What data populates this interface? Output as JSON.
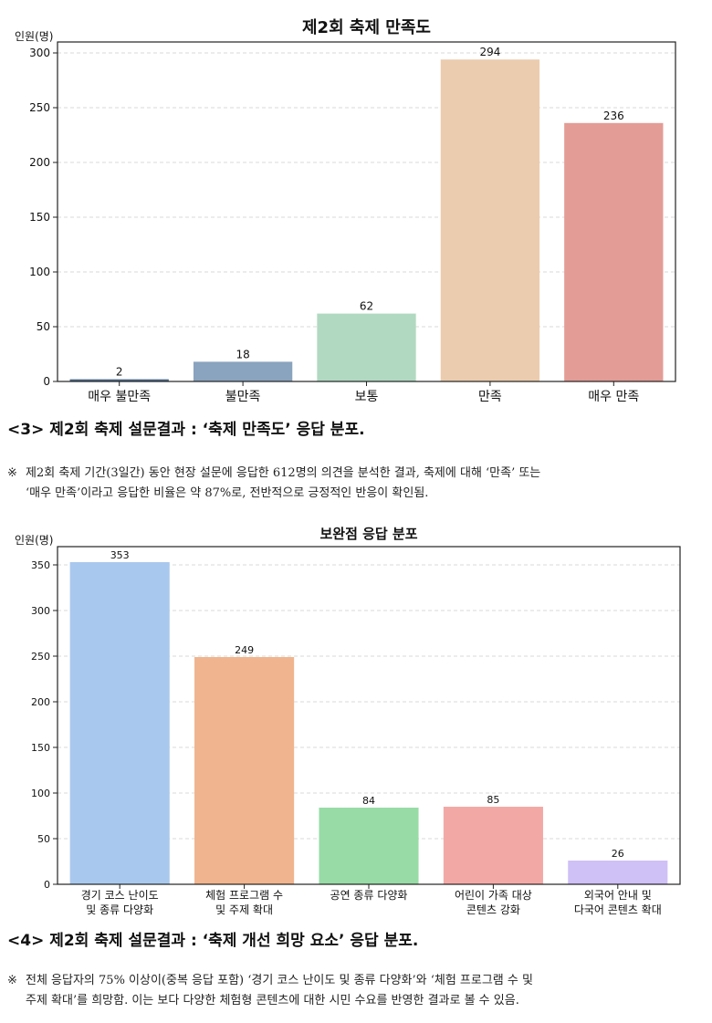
{
  "chart_data": [
    {
      "type": "bar",
      "title": "제2회 축제 만족도",
      "ylabel": "인원(명)",
      "xlabel": "",
      "categories": [
        "매우 불만족",
        "불만족",
        "보통",
        "만족",
        "매우 만족"
      ],
      "values": [
        2,
        18,
        62,
        294,
        236
      ],
      "colors": [
        "#4c6b8c",
        "#8aa3be",
        "#b1d9c2",
        "#ecccae",
        "#e39c96"
      ],
      "ylim": [
        0,
        310
      ],
      "yticks": [
        0,
        50,
        100,
        150,
        200,
        250,
        300
      ],
      "grid": true
    },
    {
      "type": "bar",
      "title": "보완점 응답 분포",
      "ylabel": "인원(명)",
      "xlabel": "",
      "categories": [
        [
          "경기 코스 난이도",
          "및 종류 다양화"
        ],
        [
          "체험 프로그램 수",
          "및 주제 확대"
        ],
        [
          "공연 종류 다양화"
        ],
        [
          "어린이 가족 대상",
          "콘텐츠 강화"
        ],
        [
          "외국어 안내 및",
          "다국어 콘텐츠 확대"
        ]
      ],
      "values": [
        353,
        249,
        84,
        85,
        26
      ],
      "colors": [
        "#a9c8ee",
        "#f0b48e",
        "#98dba6",
        "#f2a9a6",
        "#cfc0f6"
      ],
      "ylim": [
        0,
        370
      ],
      "yticks": [
        0,
        50,
        100,
        150,
        200,
        250,
        300,
        350
      ],
      "grid": true
    }
  ],
  "captions": {
    "first": "<3> 제2회 축제 설문결과 : ‘축제 만족도’ 응답 분포.",
    "second": "<4> 제2회 축제 설문결과 : ‘축제 개선 희망 요소’ 응답 분포."
  },
  "notes": {
    "mark": "※",
    "first_line1": "제2회 축제 기간(3일간) 동안 현장 설문에 응답한 612명의 의견을 분석한 결과, 축제에 대해 ‘만족’ 또는",
    "first_line2": "‘매우 만족’이라고 응답한 비율은 약 87%로, 전반적으로 긍정적인 반응이 확인됨.",
    "second_line1": "전체 응답자의 75% 이상이(중복 응답 포함) ‘경기 코스 난이도 및 종류 다양화’와 ‘체험 프로그램 수 및",
    "second_line2": "주제 확대’를 희망함. 이는 보다 다양한 체험형 콘텐츠에 대한 시민 수요를 반영한 결과로 볼 수 있음."
  }
}
